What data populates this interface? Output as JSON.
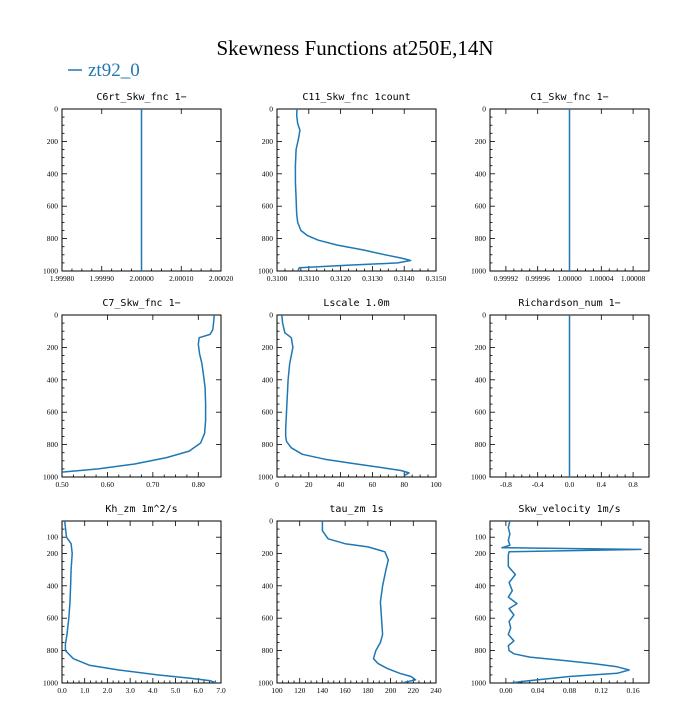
{
  "figure": {
    "title": "Skewness Functions at250E,14N",
    "legend": {
      "label": "zt92_0",
      "color": "#1f77b4",
      "placement": "top-left"
    },
    "line_color": "#1f77b4"
  },
  "chart_data": [
    {
      "type": "line",
      "title": "C6rt_Skw_fnc   1−",
      "xlim": [
        1.9998,
        2.0002
      ],
      "ylim": [
        1000,
        0
      ],
      "y_inverted": true,
      "xticks": [
        1.9998,
        1.9999,
        2.0,
        2.0001,
        2.0002
      ],
      "xtick_labels": [
        "1.99980",
        "1.99990",
        "2.00000",
        "2.00010",
        "2.00020"
      ],
      "yticks": [
        0,
        200,
        400,
        600,
        800,
        1000
      ],
      "ytick_labels": [
        "0",
        "200",
        "400",
        "600",
        "800",
        "1000"
      ],
      "series": [
        {
          "x": [
            2.0,
            2.0
          ],
          "y": [
            0,
            1000
          ]
        }
      ]
    },
    {
      "type": "line",
      "title": "C11_Skw_fnc   1count",
      "xlim": [
        0.31,
        0.315
      ],
      "ylim": [
        1000,
        0
      ],
      "y_inverted": true,
      "xticks": [
        0.31,
        0.311,
        0.312,
        0.313,
        0.314,
        0.315
      ],
      "xtick_labels": [
        "0.3100",
        "0.3110",
        "0.3120",
        "0.3130",
        "0.3140",
        "0.3150"
      ],
      "yticks": [
        0,
        200,
        400,
        600,
        800,
        1000
      ],
      "ytick_labels": [
        "0",
        "200",
        "400",
        "600",
        "800",
        "1000"
      ],
      "series": [
        {
          "x": [
            0.31063,
            0.31062,
            0.31065,
            0.31072,
            0.31068,
            0.3106,
            0.31058,
            0.31058,
            0.3106,
            0.31062,
            0.31065,
            0.31075,
            0.31095,
            0.3113,
            0.3119,
            0.3127,
            0.3134,
            0.3139,
            0.3142,
            0.3138,
            0.3122,
            0.3107,
            0.31065
          ],
          "y": [
            0,
            40,
            90,
            130,
            180,
            250,
            350,
            450,
            550,
            650,
            700,
            750,
            780,
            810,
            840,
            870,
            900,
            920,
            935,
            950,
            965,
            980,
            1000
          ]
        }
      ]
    },
    {
      "type": "line",
      "title": "C1_Skw_fnc   1−",
      "xlim": [
        0.9999,
        1.0001
      ],
      "ylim": [
        1000,
        0
      ],
      "y_inverted": true,
      "xticks": [
        0.99992,
        0.99996,
        1.0,
        1.00004,
        1.00008
      ],
      "xtick_labels": [
        "0.99992",
        "0.99996",
        "1.00000",
        "1.00004",
        "1.00008"
      ],
      "yticks": [
        0,
        200,
        400,
        600,
        800,
        1000
      ],
      "ytick_labels": [
        "0",
        "200",
        "400",
        "600",
        "800",
        "1000"
      ],
      "series": [
        {
          "x": [
            1.0,
            1.0
          ],
          "y": [
            0,
            1000
          ]
        }
      ]
    },
    {
      "type": "line",
      "title": "C7_Skw_fnc   1−",
      "xlim": [
        0.5,
        0.85
      ],
      "ylim": [
        1000,
        0
      ],
      "y_inverted": true,
      "xticks": [
        0.5,
        0.6,
        0.7,
        0.8
      ],
      "xtick_labels": [
        "0.50",
        "0.60",
        "0.70",
        "0.80"
      ],
      "yticks": [
        0,
        200,
        400,
        600,
        800,
        1000
      ],
      "ytick_labels": [
        "0",
        "200",
        "400",
        "600",
        "800",
        "1000"
      ],
      "series": [
        {
          "x": [
            0.835,
            0.834,
            0.832,
            0.826,
            0.802,
            0.8,
            0.803,
            0.808,
            0.812,
            0.815,
            0.816,
            0.816,
            0.814,
            0.805,
            0.78,
            0.73,
            0.66,
            0.58,
            0.5
          ],
          "y": [
            0,
            40,
            90,
            120,
            140,
            180,
            240,
            300,
            380,
            450,
            550,
            650,
            730,
            790,
            840,
            880,
            920,
            950,
            970
          ]
        }
      ]
    },
    {
      "type": "line",
      "title": "Lscale   1.0m",
      "xlim": [
        0,
        100
      ],
      "ylim": [
        1000,
        0
      ],
      "y_inverted": true,
      "xticks": [
        0,
        20,
        40,
        60,
        80,
        100
      ],
      "xtick_labels": [
        "0",
        "20",
        "40",
        "60",
        "80",
        "100"
      ],
      "yticks": [
        0,
        200,
        400,
        600,
        800,
        1000
      ],
      "ytick_labels": [
        "0",
        "200",
        "400",
        "600",
        "800",
        "1000"
      ],
      "series": [
        {
          "x": [
            3,
            3.5,
            5,
            9,
            10,
            8,
            7,
            6.5,
            6,
            5.5,
            5.5,
            6,
            9,
            16,
            30,
            50,
            68,
            78,
            83,
            80
          ],
          "y": [
            0,
            50,
            110,
            140,
            200,
            300,
            400,
            500,
            600,
            700,
            750,
            780,
            820,
            860,
            890,
            920,
            945,
            960,
            975,
            990
          ]
        }
      ]
    },
    {
      "type": "line",
      "title": "Richardson_num   1−",
      "xlim": [
        -1,
        1
      ],
      "ylim": [
        1000,
        0
      ],
      "y_inverted": true,
      "xticks": [
        -0.8,
        -0.4,
        0.0,
        0.4,
        0.8
      ],
      "xtick_labels": [
        "-0.8",
        "-0.4",
        "0.0",
        "0.4",
        "0.8"
      ],
      "yticks": [
        0,
        200,
        400,
        600,
        800,
        1000
      ],
      "ytick_labels": [
        "0",
        "200",
        "400",
        "600",
        "800",
        "1000"
      ],
      "series": [
        {
          "x": [
            0.0,
            0.0
          ],
          "y": [
            0,
            1000
          ]
        }
      ]
    },
    {
      "type": "line",
      "title": "Kh_zm   1m^2/s",
      "xlim": [
        0,
        7.0
      ],
      "ylim": [
        1000,
        0
      ],
      "y_inverted": true,
      "xticks": [
        0,
        1,
        2,
        3,
        4,
        5,
        6,
        7
      ],
      "xtick_labels": [
        "0.0",
        "1.0",
        "2.0",
        "3.0",
        "4.0",
        "5.0",
        "6.0",
        "7.0"
      ],
      "yticks": [
        100,
        200,
        400,
        600,
        800,
        1000
      ],
      "ytick_labels": [
        "100",
        "200",
        "400",
        "600",
        "800",
        "1000"
      ],
      "series": [
        {
          "x": [
            0.12,
            0.2,
            0.4,
            0.45,
            0.4,
            0.38,
            0.35,
            0.3,
            0.22,
            0.15,
            0.15,
            0.5,
            1.2,
            2.5,
            4.2,
            5.6,
            6.5,
            6.8
          ],
          "y": [
            0,
            100,
            140,
            200,
            300,
            400,
            500,
            600,
            700,
            760,
            800,
            850,
            890,
            920,
            950,
            970,
            985,
            1000
          ]
        }
      ]
    },
    {
      "type": "line",
      "title": "tau_zm   1s",
      "xlim": [
        100,
        240
      ],
      "ylim": [
        1000,
        0
      ],
      "y_inverted": true,
      "xticks": [
        100,
        120,
        140,
        160,
        180,
        200,
        220,
        240
      ],
      "xtick_labels": [
        "100",
        "120",
        "140",
        "160",
        "180",
        "200",
        "220",
        "240"
      ],
      "yticks": [
        0,
        200,
        400,
        600,
        800,
        1000
      ],
      "ytick_labels": [
        "0",
        "200",
        "400",
        "600",
        "800",
        "1000"
      ],
      "series": [
        {
          "x": [
            140,
            140,
            145,
            160,
            180,
            195,
            198,
            196,
            193,
            191,
            192,
            193,
            191,
            187,
            185,
            189,
            197,
            208,
            218,
            222,
            210
          ],
          "y": [
            0,
            60,
            110,
            140,
            160,
            190,
            240,
            300,
            400,
            500,
            600,
            700,
            750,
            800,
            850,
            880,
            910,
            940,
            960,
            980,
            1000
          ]
        }
      ]
    },
    {
      "type": "line",
      "title": "Skw_velocity   1m/s",
      "xlim": [
        -0.02,
        0.18
      ],
      "ylim": [
        1000,
        0
      ],
      "y_inverted": true,
      "xticks": [
        0.0,
        0.04,
        0.08,
        0.12,
        0.16
      ],
      "xtick_labels": [
        "0.00",
        "0.04",
        "0.08",
        "0.12",
        "0.16"
      ],
      "yticks": [
        100,
        200,
        400,
        600,
        800,
        1000
      ],
      "ytick_labels": [
        "100",
        "200",
        "400",
        "600",
        "800",
        "1000"
      ],
      "series": [
        {
          "x": [
            0.005,
            0.003,
            0.005,
            0.003,
            0.005,
            -0.005,
            0.17,
            0.004,
            0.003,
            0.003,
            0.012,
            0.004,
            0.008,
            0.003,
            0.014,
            0.004,
            0.01,
            0.004,
            0.006,
            0.003,
            0.01,
            0.003,
            0.004,
            0.01,
            0.03,
            0.07,
            0.11,
            0.14,
            0.155,
            0.14,
            0.08,
            0.03,
            0.005
          ],
          "y": [
            0,
            40,
            80,
            120,
            150,
            165,
            175,
            190,
            210,
            280,
            330,
            380,
            430,
            470,
            510,
            540,
            580,
            620,
            660,
            700,
            740,
            770,
            800,
            820,
            840,
            860,
            880,
            900,
            920,
            940,
            960,
            985,
            1000
          ]
        }
      ]
    }
  ]
}
